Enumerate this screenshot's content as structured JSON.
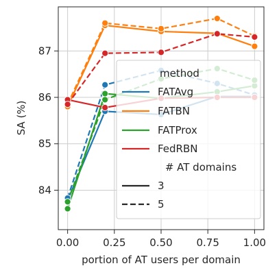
{
  "chart_data": {
    "type": "line",
    "xlabel": "portion of AT users per domain",
    "ylabel": "SA (%)",
    "xlim": [
      -0.05,
      1.05
    ],
    "ylim": [
      83.15,
      87.95
    ],
    "xticks": [
      0.0,
      0.25,
      0.5,
      0.75,
      1.0
    ],
    "xtick_labels": [
      "0.00",
      "0.25",
      "0.50",
      "0.75",
      "1.00"
    ],
    "yticks": [
      84,
      85,
      86,
      87
    ],
    "ytick_labels": [
      "84",
      "85",
      "86",
      "87"
    ],
    "grid": true,
    "legend_position": "center-right",
    "x": [
      0.0,
      0.2,
      0.5,
      0.8,
      1.0
    ],
    "series": [
      {
        "method": "FATAvg",
        "domains": "3",
        "color": "#1f77b4",
        "values": [
          83.78,
          85.7,
          85.63,
          86.02,
          86.02
        ]
      },
      {
        "method": "FATAvg",
        "domains": "5",
        "color": "#1f77b4",
        "values": [
          83.83,
          86.27,
          86.58,
          86.3,
          86.05
        ]
      },
      {
        "method": "FATBN",
        "domains": "3",
        "color": "#ff7f0e",
        "values": [
          85.8,
          87.55,
          87.42,
          87.38,
          87.1
        ]
      },
      {
        "method": "FATBN",
        "domains": "5",
        "color": "#ff7f0e",
        "values": [
          85.85,
          87.6,
          87.48,
          87.7,
          87.32
        ]
      },
      {
        "method": "FATProx",
        "domains": "3",
        "color": "#2ca02c",
        "values": [
          83.6,
          86.08,
          85.98,
          86.12,
          86.25
        ]
      },
      {
        "method": "FATProx",
        "domains": "5",
        "color": "#2ca02c",
        "values": [
          83.75,
          85.95,
          86.4,
          86.62,
          86.37
        ]
      },
      {
        "method": "FedRBN",
        "domains": "3",
        "color": "#d62728",
        "values": [
          85.95,
          85.78,
          85.98,
          86.0,
          86.0
        ]
      },
      {
        "method": "FedRBN",
        "domains": "5",
        "color": "#d62728",
        "values": [
          85.85,
          86.95,
          86.97,
          87.37,
          87.3
        ]
      }
    ],
    "legend": {
      "hue_title": "method",
      "hue_entries": [
        {
          "label": "FATAvg",
          "color": "#1f77b4"
        },
        {
          "label": "FATBN",
          "color": "#ff7f0e"
        },
        {
          "label": "FATProx",
          "color": "#2ca02c"
        },
        {
          "label": "FedRBN",
          "color": "#d62728"
        }
      ],
      "style_title": "# AT domains",
      "style_entries": [
        {
          "label": "3",
          "dash": "solid"
        },
        {
          "label": "5",
          "dash": "dashed"
        }
      ]
    }
  }
}
